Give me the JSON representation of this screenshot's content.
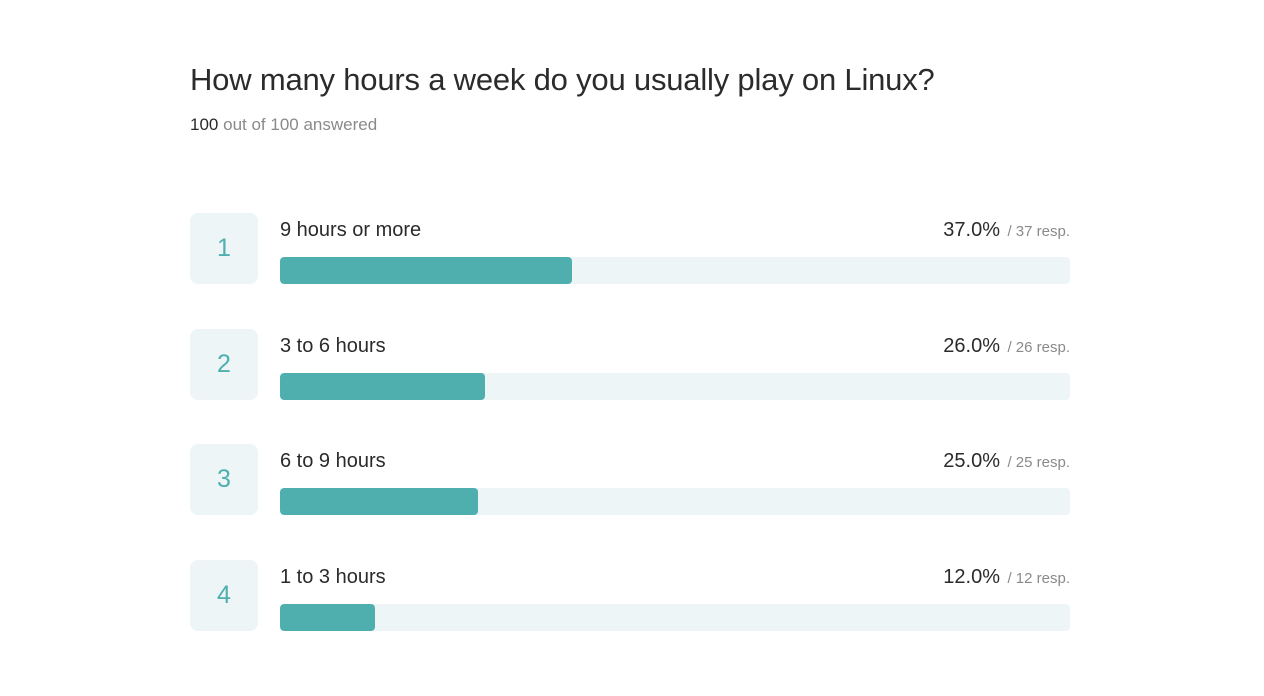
{
  "question": {
    "title": "How many hours a week do you usually play on Linux?",
    "answered_count": "100",
    "answered_suffix": "out of 100 answered"
  },
  "colors": {
    "bar_fill": "#4eafae",
    "bar_track": "#edf5f6",
    "rank_text": "#4eafae"
  },
  "chart_data": {
    "type": "bar",
    "orientation": "horizontal",
    "categories": [
      "9 hours or more",
      "3 to 6 hours",
      "6 to 9 hours",
      "1 to 3 hours"
    ],
    "values": [
      37.0,
      26.0,
      25.0,
      12.0
    ],
    "xlim": [
      0,
      100
    ],
    "grid": false,
    "rows": [
      {
        "rank": "1",
        "label": "9 hours or more",
        "percent": 37.0,
        "percent_text": "37.0%",
        "resp_text": "/ 37 resp."
      },
      {
        "rank": "2",
        "label": "3 to 6 hours",
        "percent": 26.0,
        "percent_text": "26.0%",
        "resp_text": "/ 26 resp."
      },
      {
        "rank": "3",
        "label": "6 to 9 hours",
        "percent": 25.0,
        "percent_text": "25.0%",
        "resp_text": "/ 25 resp."
      },
      {
        "rank": "4",
        "label": "1 to 3 hours",
        "percent": 12.0,
        "percent_text": "12.0%",
        "resp_text": "/ 12 resp."
      }
    ]
  }
}
